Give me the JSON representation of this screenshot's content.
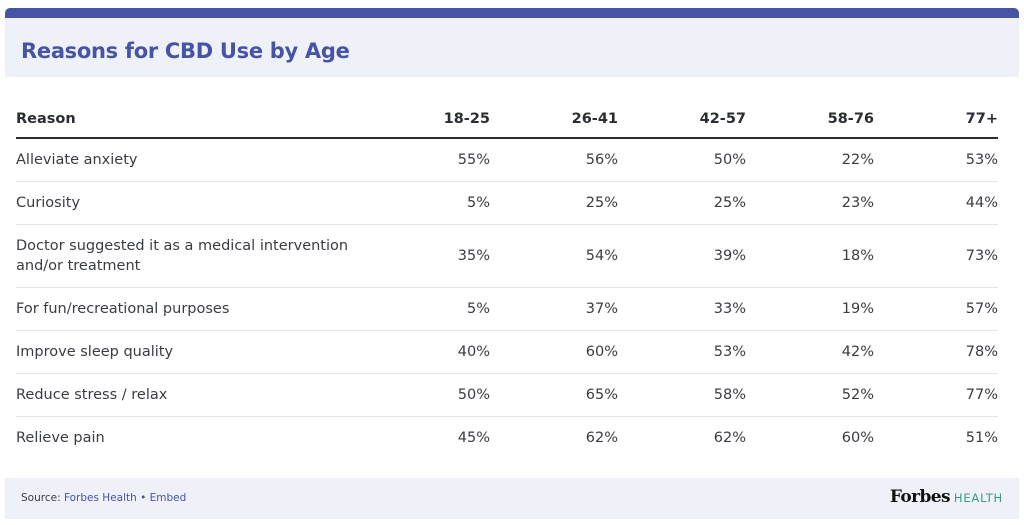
{
  "chart_data": {
    "type": "table",
    "title": "Reasons for CBD Use by Age",
    "columns": [
      "Reason",
      "18-25",
      "26-41",
      "42-57",
      "58-76",
      "77+"
    ],
    "rows": [
      [
        "Alleviate anxiety",
        "55%",
        "56%",
        "50%",
        "22%",
        "53%"
      ],
      [
        "Curiosity",
        "5%",
        "25%",
        "25%",
        "23%",
        "44%"
      ],
      [
        "Doctor suggested it as a medical intervention and/or treatment",
        "35%",
        "54%",
        "39%",
        "18%",
        "73%"
      ],
      [
        "For fun/recreational purposes",
        "5%",
        "37%",
        "33%",
        "19%",
        "57%"
      ],
      [
        "Improve sleep quality",
        "40%",
        "60%",
        "53%",
        "42%",
        "78%"
      ],
      [
        "Reduce stress / relax",
        "50%",
        "65%",
        "58%",
        "52%",
        "77%"
      ],
      [
        "Relieve pain",
        "45%",
        "62%",
        "62%",
        "60%",
        "51%"
      ]
    ]
  },
  "footer": {
    "source_label": "Source: ",
    "source_link": "Forbes Health",
    "separator": " • ",
    "embed_link": "Embed"
  },
  "logo": {
    "brand": "Forbes",
    "sub": "HEALTH"
  },
  "colors": {
    "accent": "#4654a3",
    "header_bg": "#eef1f8",
    "logo_sub": "#3c9a86"
  }
}
